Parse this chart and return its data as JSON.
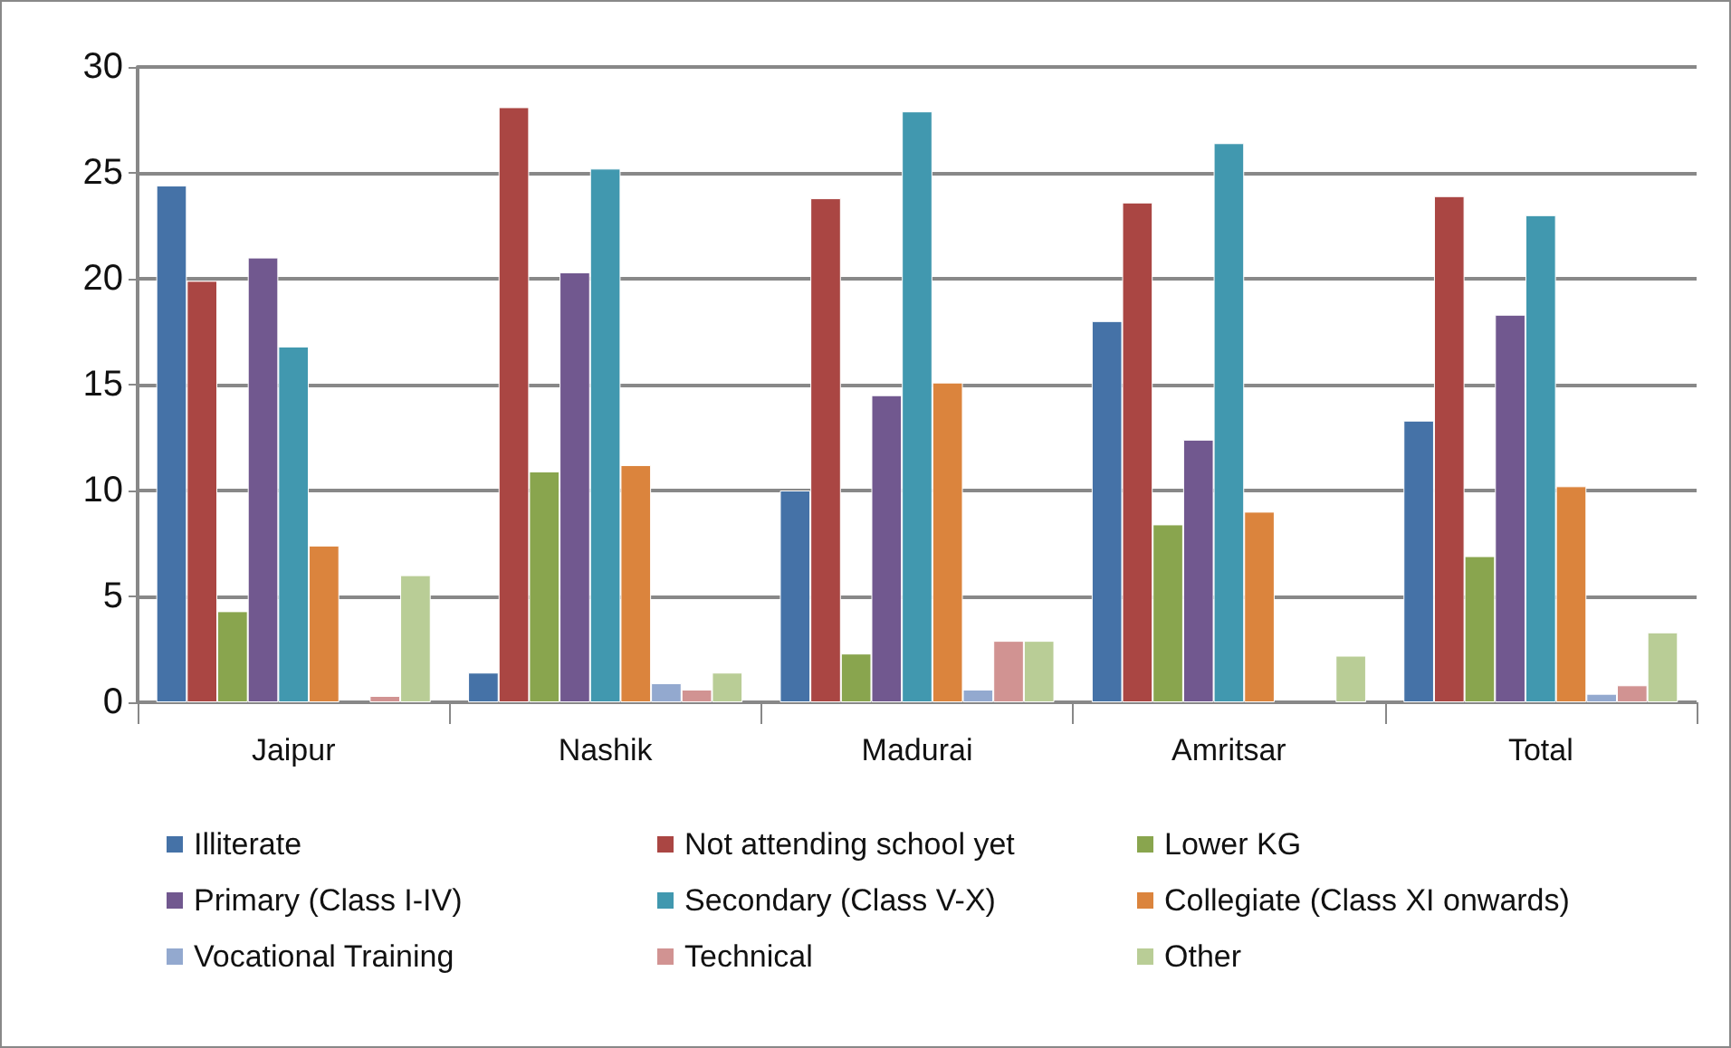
{
  "chart_data": {
    "type": "bar",
    "categories": [
      "Jaipur",
      "Nashik",
      "Madurai",
      "Amritsar",
      "Total"
    ],
    "ylim": [
      0,
      30
    ],
    "yticks": [
      0,
      5,
      10,
      15,
      20,
      25,
      30
    ],
    "grid": "y",
    "legend": "bottom",
    "series": [
      {
        "name": "Illiterate",
        "color": "#4572a7",
        "values": [
          24.4,
          1.4,
          10.0,
          18.0,
          13.3
        ]
      },
      {
        "name": "Not attending school yet",
        "color": "#aa4643",
        "values": [
          19.9,
          28.1,
          23.8,
          23.6,
          23.9
        ]
      },
      {
        "name": "Lower KG",
        "color": "#89a54e",
        "values": [
          4.3,
          10.9,
          2.3,
          8.4,
          6.9
        ]
      },
      {
        "name": "Primary (Class I-IV)",
        "color": "#71588f",
        "values": [
          21.0,
          20.3,
          14.5,
          12.4,
          18.3
        ]
      },
      {
        "name": "Secondary (Class V-X)",
        "color": "#4198af",
        "values": [
          16.8,
          25.2,
          27.9,
          26.4,
          23.0
        ]
      },
      {
        "name": "Collegiate (Class XI onwards)",
        "color": "#db843d",
        "values": [
          7.4,
          11.2,
          15.1,
          9.0,
          10.2
        ]
      },
      {
        "name": "Vocational Training",
        "color": "#93a9cf",
        "values": [
          null,
          0.9,
          0.6,
          null,
          0.4
        ]
      },
      {
        "name": "Technical",
        "color": "#d19392",
        "values": [
          0.3,
          0.6,
          2.9,
          null,
          0.8
        ]
      },
      {
        "name": "Other",
        "color": "#b9cd96",
        "values": [
          6.0,
          1.4,
          2.9,
          2.2,
          3.3
        ]
      }
    ]
  }
}
